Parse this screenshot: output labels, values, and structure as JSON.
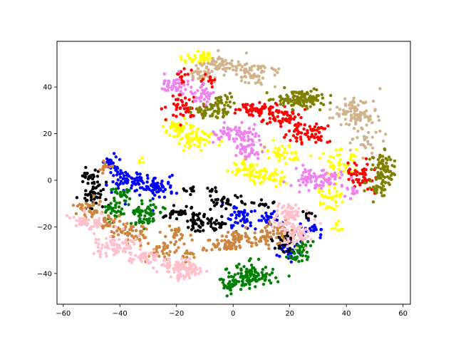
{
  "chart_data": {
    "type": "scatter",
    "title": "",
    "xlabel": "",
    "ylabel": "",
    "xlim": [
      -62.2,
      62.6
    ],
    "ylim": [
      -53.2,
      59.6
    ],
    "x_ticks": [
      -60,
      -40,
      -20,
      0,
      20,
      40,
      60
    ],
    "x_tick_labels": [
      "−60",
      "−40",
      "−20",
      "0",
      "20",
      "40",
      "60"
    ],
    "y_ticks": [
      -40,
      -20,
      0,
      20,
      40
    ],
    "y_tick_labels": [
      "−40",
      "−20",
      "0",
      "20",
      "40"
    ],
    "grid": false,
    "legend": "none",
    "clusters": [
      {
        "color": "#ffff00",
        "cx": -12,
        "cy": 52,
        "sx": 3,
        "sy": 2,
        "n": 40
      },
      {
        "color": "#ffff00",
        "cx": -19,
        "cy": 22,
        "sx": 3,
        "sy": 1.8,
        "n": 60
      },
      {
        "color": "#ffff00",
        "cx": -12,
        "cy": 17,
        "sx": 3,
        "sy": 2,
        "n": 50
      },
      {
        "color": "#ffff00",
        "cx": 4,
        "cy": 5,
        "sx": 2.5,
        "sy": 1.5,
        "n": 35
      },
      {
        "color": "#ffff00",
        "cx": 12,
        "cy": 1,
        "sx": 3.5,
        "sy": 2,
        "n": 55
      },
      {
        "color": "#ffff00",
        "cx": 17,
        "cy": 11,
        "sx": 3,
        "sy": 2,
        "n": 40
      },
      {
        "color": "#ffff00",
        "cx": 37,
        "cy": 7,
        "sx": 3,
        "sy": 3,
        "n": 45
      },
      {
        "color": "#ffff00",
        "cx": 34,
        "cy": -6,
        "sx": 2.5,
        "sy": 3,
        "n": 35
      },
      {
        "color": "#ffff00",
        "cx": 36,
        "cy": -20,
        "sx": 1.5,
        "sy": 1.5,
        "n": 8
      },
      {
        "color": "#ffff00",
        "cx": -32,
        "cy": 8,
        "sx": 0.8,
        "sy": 0.8,
        "n": 4
      },
      {
        "color": "#d2b48c",
        "cx": -4,
        "cy": 49,
        "sx": 3.5,
        "sy": 2,
        "n": 60
      },
      {
        "color": "#d2b48c",
        "cx": 8,
        "cy": 46,
        "sx": 4,
        "sy": 2.5,
        "n": 60
      },
      {
        "color": "#d2b48c",
        "cx": -12,
        "cy": 45,
        "sx": 2,
        "sy": 1.5,
        "n": 25
      },
      {
        "color": "#d2b48c",
        "cx": 43,
        "cy": 29,
        "sx": 4,
        "sy": 3.5,
        "n": 95
      },
      {
        "color": "#d2b48c",
        "cx": 46,
        "cy": 17,
        "sx": 2.5,
        "sy": 3,
        "n": 30
      },
      {
        "color": "#ff0000",
        "cx": -18,
        "cy": 45,
        "sx": 1.5,
        "sy": 1.5,
        "n": 15
      },
      {
        "color": "#ff0000",
        "cx": -9,
        "cy": 43,
        "sx": 1.5,
        "sy": 1.5,
        "n": 12
      },
      {
        "color": "#ff0000",
        "cx": -18,
        "cy": 31,
        "sx": 2.5,
        "sy": 2.5,
        "n": 50
      },
      {
        "color": "#ff0000",
        "cx": 9,
        "cy": 30,
        "sx": 4,
        "sy": 1.5,
        "n": 70
      },
      {
        "color": "#ff0000",
        "cx": 18,
        "cy": 27,
        "sx": 3,
        "sy": 2,
        "n": 45
      },
      {
        "color": "#ff0000",
        "cx": 28,
        "cy": 20,
        "sx": 3.5,
        "sy": 2.5,
        "n": 65
      },
      {
        "color": "#ff0000",
        "cx": 45,
        "cy": 3,
        "sx": 2.5,
        "sy": 3,
        "n": 55
      },
      {
        "color": "#ee82ee",
        "cx": -20,
        "cy": 41,
        "sx": 3,
        "sy": 2,
        "n": 45
      },
      {
        "color": "#ee82ee",
        "cx": -10,
        "cy": 37,
        "sx": 2,
        "sy": 2.5,
        "n": 35
      },
      {
        "color": "#ee82ee",
        "cx": -2,
        "cy": 20,
        "sx": 2.5,
        "sy": 2.5,
        "n": 45
      },
      {
        "color": "#ee82ee",
        "cx": 5,
        "cy": 18,
        "sx": 2.5,
        "sy": 3,
        "n": 40
      },
      {
        "color": "#ee82ee",
        "cx": 6,
        "cy": 12,
        "sx": 2.5,
        "sy": 1.5,
        "n": 30
      },
      {
        "color": "#ee82ee",
        "cx": 29,
        "cy": 1,
        "sx": 4.5,
        "sy": 2.5,
        "n": 85
      },
      {
        "color": "#ee82ee",
        "cx": 42,
        "cy": -5,
        "sx": 1.5,
        "sy": 1.5,
        "n": 15
      },
      {
        "color": "#808000",
        "cx": -8,
        "cy": 30,
        "sx": 3,
        "sy": 1.5,
        "n": 50
      },
      {
        "color": "#808000",
        "cx": -3,
        "cy": 34,
        "sx": 2,
        "sy": 2,
        "n": 25
      },
      {
        "color": "#808000",
        "cx": 21,
        "cy": 35,
        "sx": 4,
        "sy": 2,
        "n": 70
      },
      {
        "color": "#808000",
        "cx": 27,
        "cy": 35,
        "sx": 3,
        "sy": 2.5,
        "n": 50
      },
      {
        "color": "#808000",
        "cx": 53,
        "cy": 4,
        "sx": 2.2,
        "sy": 4.5,
        "n": 80
      },
      {
        "color": "#808000",
        "cx": 51,
        "cy": -4,
        "sx": 1.5,
        "sy": 2,
        "n": 25
      },
      {
        "color": "#0000ff",
        "cx": -43,
        "cy": 7,
        "sx": 1.5,
        "sy": 1.5,
        "n": 30
      },
      {
        "color": "#0000ff",
        "cx": -37,
        "cy": 0,
        "sx": 4,
        "sy": 2.5,
        "n": 70
      },
      {
        "color": "#0000ff",
        "cx": -27,
        "cy": -3,
        "sx": 3.5,
        "sy": 2.5,
        "n": 70
      },
      {
        "color": "#0000ff",
        "cx": 3,
        "cy": -15,
        "sx": 2.5,
        "sy": 2.5,
        "n": 45
      },
      {
        "color": "#0000ff",
        "cx": 14,
        "cy": -17,
        "sx": 2,
        "sy": 1.8,
        "n": 25
      },
      {
        "color": "#0000ff",
        "cx": 28,
        "cy": -21,
        "sx": 2,
        "sy": 1.5,
        "n": 20
      },
      {
        "color": "#0000ff",
        "cx": 19,
        "cy": -30,
        "sx": 2,
        "sy": 2,
        "n": 25
      },
      {
        "color": "#000000",
        "cx": -51,
        "cy": 2,
        "sx": 1.5,
        "sy": 1.5,
        "n": 20
      },
      {
        "color": "#000000",
        "cx": -50,
        "cy": -5,
        "sx": 2.5,
        "sy": 3.5,
        "n": 50
      },
      {
        "color": "#000000",
        "cx": -2,
        "cy": -9,
        "sx": 2.5,
        "sy": 1.5,
        "n": 30
      },
      {
        "color": "#000000",
        "cx": -15,
        "cy": -4,
        "sx": 1.5,
        "sy": 0.8,
        "n": 10
      },
      {
        "color": "#000000",
        "cx": -8,
        "cy": -4,
        "sx": 1.2,
        "sy": 0.8,
        "n": 8
      },
      {
        "color": "#000000",
        "cx": -18,
        "cy": -14,
        "sx": 3,
        "sy": 1.5,
        "n": 35
      },
      {
        "color": "#000000",
        "cx": -14,
        "cy": -18,
        "sx": 2,
        "sy": 2,
        "n": 30
      },
      {
        "color": "#000000",
        "cx": -6,
        "cy": -19,
        "sx": 2.5,
        "sy": 1.5,
        "n": 30
      },
      {
        "color": "#000000",
        "cx": 11,
        "cy": -10,
        "sx": 1.8,
        "sy": 0.8,
        "n": 12
      },
      {
        "color": "#000000",
        "cx": 18,
        "cy": -26,
        "sx": 2,
        "sy": 2.5,
        "n": 40
      },
      {
        "color": "#000000",
        "cx": 26,
        "cy": -15,
        "sx": 1.5,
        "sy": 1,
        "n": 10
      },
      {
        "color": "#008000",
        "cx": -39,
        "cy": -6,
        "sx": 1.8,
        "sy": 1.5,
        "n": 25
      },
      {
        "color": "#008000",
        "cx": -42,
        "cy": -13,
        "sx": 2,
        "sy": 2,
        "n": 30
      },
      {
        "color": "#008000",
        "cx": -31,
        "cy": -15,
        "sx": 3,
        "sy": 3,
        "n": 70
      },
      {
        "color": "#008000",
        "cx": 6,
        "cy": -41,
        "sx": 4.5,
        "sy": 2.5,
        "n": 110
      },
      {
        "color": "#008000",
        "cx": -1,
        "cy": -45,
        "sx": 1.8,
        "sy": 1.5,
        "n": 25
      },
      {
        "color": "#008000",
        "cx": 25,
        "cy": -30,
        "sx": 1.8,
        "sy": 2,
        "n": 25
      },
      {
        "color": "#008000",
        "cx": 22,
        "cy": -33,
        "sx": 1.5,
        "sy": 1,
        "n": 15
      },
      {
        "color": "#cd853f",
        "cx": -45,
        "cy": 5,
        "sx": 1.2,
        "sy": 1.5,
        "n": 12
      },
      {
        "color": "#cd853f",
        "cx": -51,
        "cy": -12,
        "sx": 2.5,
        "sy": 2,
        "n": 40
      },
      {
        "color": "#cd853f",
        "cx": -43,
        "cy": -18,
        "sx": 2.5,
        "sy": 1.8,
        "n": 30
      },
      {
        "color": "#cd853f",
        "cx": -36,
        "cy": -23,
        "sx": 3.5,
        "sy": 2,
        "n": 45
      },
      {
        "color": "#cd853f",
        "cx": -26,
        "cy": -30,
        "sx": 3,
        "sy": 2,
        "n": 40
      },
      {
        "color": "#cd853f",
        "cx": -20,
        "cy": -23,
        "sx": 2,
        "sy": 2,
        "n": 25
      },
      {
        "color": "#cd853f",
        "cx": -16,
        "cy": -33,
        "sx": 1.8,
        "sy": 1,
        "n": 12
      },
      {
        "color": "#cd853f",
        "cx": -3,
        "cy": -28,
        "sx": 4,
        "sy": 1.5,
        "n": 50
      },
      {
        "color": "#cd853f",
        "cx": 1,
        "cy": -24,
        "sx": 2,
        "sy": 1,
        "n": 20
      },
      {
        "color": "#cd853f",
        "cx": 9,
        "cy": -24,
        "sx": 3,
        "sy": 2,
        "n": 40
      },
      {
        "color": "#cd853f",
        "cx": 16,
        "cy": -22,
        "sx": 2.5,
        "sy": 2,
        "n": 30
      },
      {
        "color": "#ffc0cb",
        "cx": -51,
        "cy": -18,
        "sx": 2.5,
        "sy": 2,
        "n": 50
      },
      {
        "color": "#ffc0cb",
        "cx": -42,
        "cy": -28,
        "sx": 4,
        "sy": 2.5,
        "n": 70
      },
      {
        "color": "#ffc0cb",
        "cx": -31,
        "cy": -33,
        "sx": 3,
        "sy": 2,
        "n": 40
      },
      {
        "color": "#ffc0cb",
        "cx": -21,
        "cy": -37,
        "sx": 3,
        "sy": 1.5,
        "n": 50
      },
      {
        "color": "#ffc0cb",
        "cx": -15,
        "cy": -38,
        "sx": 2.5,
        "sy": 1.8,
        "n": 40
      },
      {
        "color": "#ffc0cb",
        "cx": -19,
        "cy": -42,
        "sx": 1.5,
        "sy": 1,
        "n": 12
      },
      {
        "color": "#ffc0cb",
        "cx": 19,
        "cy": -17,
        "sx": 3,
        "sy": 2.5,
        "n": 45
      },
      {
        "color": "#ffc0cb",
        "cx": 22,
        "cy": -24,
        "sx": 3,
        "sy": 2.5,
        "n": 50
      },
      {
        "color": "#ffc0cb",
        "cx": 20,
        "cy": -13,
        "sx": 2,
        "sy": 1.5,
        "n": 20
      }
    ]
  }
}
